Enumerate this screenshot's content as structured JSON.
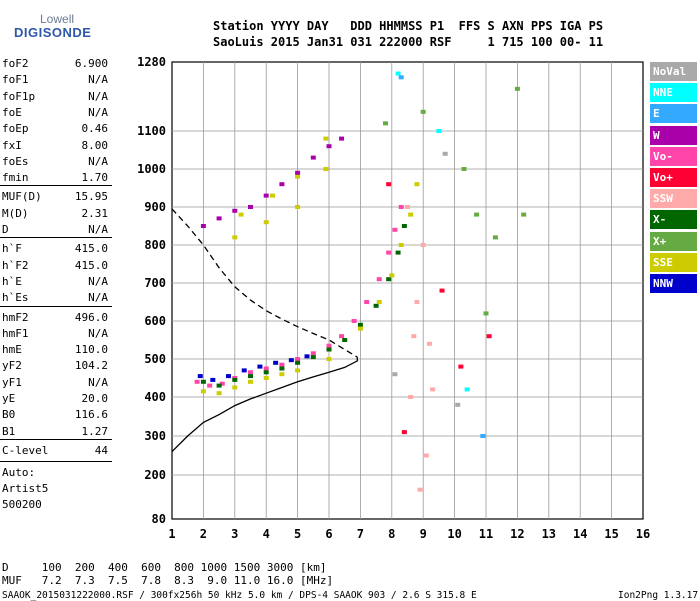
{
  "logo": {
    "line1": "Lowell",
    "line2": "DIGISONDE"
  },
  "header": {
    "row1": "Station YYYY DAY   DDD HHMMSS P1  FFS S AXN PPS IGA PS",
    "row2": "SaoLuis 2015 Jan31 031 222000 RSF     1 715 100 00- 11"
  },
  "params": [
    {
      "name": "foF2",
      "value": "6.900"
    },
    {
      "name": "foF1",
      "value": "N/A"
    },
    {
      "name": "foF1p",
      "value": "N/A"
    },
    {
      "name": "foE",
      "value": "N/A"
    },
    {
      "name": "foEp",
      "value": "0.46"
    },
    {
      "name": "fxI",
      "value": "8.00"
    },
    {
      "name": "foEs",
      "value": "N/A"
    },
    {
      "name": "fmin",
      "value": "1.70"
    },
    {
      "name": "MUF(D)",
      "value": "15.95"
    },
    {
      "name": "M(D)",
      "value": "2.31"
    },
    {
      "name": "D",
      "value": "N/A"
    },
    {
      "name": "h`F",
      "value": "415.0"
    },
    {
      "name": "h`F2",
      "value": "415.0"
    },
    {
      "name": "h`E",
      "value": "N/A"
    },
    {
      "name": "h`Es",
      "value": "N/A"
    },
    {
      "name": "hmF2",
      "value": "496.0"
    },
    {
      "name": "hmF1",
      "value": "N/A"
    },
    {
      "name": "hmE",
      "value": "110.0"
    },
    {
      "name": "yF2",
      "value": "104.2"
    },
    {
      "name": "yF1",
      "value": "N/A"
    },
    {
      "name": "yE",
      "value": "20.0"
    },
    {
      "name": "B0",
      "value": "116.6"
    },
    {
      "name": "B1",
      "value": "1.27"
    },
    {
      "name": "C-level",
      "value": "44"
    }
  ],
  "auto": {
    "line1": "Auto:",
    "line2": "Artist5",
    "line3": "500200"
  },
  "legend": [
    {
      "label": "NoVal",
      "color": "#a9a9a9"
    },
    {
      "label": "NNE",
      "color": "#00ffff"
    },
    {
      "label": "E",
      "color": "#33aaff"
    },
    {
      "label": "W",
      "color": "#aa00aa"
    },
    {
      "label": "Vo-",
      "color": "#ff44aa"
    },
    {
      "label": "Vo+",
      "color": "#ff0033"
    },
    {
      "label": "SSW",
      "color": "#ffaaaa"
    },
    {
      "label": "X-",
      "color": "#006600"
    },
    {
      "label": "X+",
      "color": "#66aa44"
    },
    {
      "label": "SSE",
      "color": "#cccc00"
    },
    {
      "label": "NNW",
      "color": "#0000cc"
    }
  ],
  "footer": {
    "d_row": "D     100  200  400  600  800 1000 1500 3000 [km]",
    "muf_row": "MUF   7.2  7.3  7.5  7.8  8.3  9.0 11.0 16.0 [MHz]",
    "info": "SAAOK_2015031222000.RSF / 300fx256h 50 kHz 5.0 km / DPS-4 SAAOK 903 / 2.6 S 315.8 E",
    "version": "Ion2Png 1.3.17"
  },
  "chart_data": {
    "type": "scatter",
    "title": "",
    "xlabel": "",
    "ylabel": "",
    "xlim": [
      1,
      16
    ],
    "ylim": [
      80,
      1280
    ],
    "x_ticks": [
      1,
      2,
      3,
      4,
      5,
      6,
      7,
      8,
      9,
      10,
      11,
      12,
      13,
      14,
      15,
      16
    ],
    "y_ticks": [
      80,
      200,
      300,
      400,
      500,
      600,
      700,
      800,
      900,
      1000,
      1100,
      1280
    ],
    "series": [
      {
        "name": "Vo-",
        "color": "#ff44aa",
        "points": [
          [
            1.8,
            440
          ],
          [
            2.2,
            430
          ],
          [
            2.6,
            435
          ],
          [
            3.0,
            450
          ],
          [
            3.5,
            465
          ],
          [
            4.0,
            475
          ],
          [
            4.5,
            485
          ],
          [
            5.0,
            500
          ],
          [
            5.5,
            515
          ],
          [
            6.0,
            535
          ],
          [
            6.4,
            560
          ],
          [
            6.8,
            600
          ],
          [
            7.2,
            650
          ],
          [
            7.6,
            710
          ],
          [
            7.9,
            780
          ],
          [
            8.1,
            840
          ],
          [
            8.3,
            900
          ]
        ]
      },
      {
        "name": "X-",
        "color": "#006600",
        "points": [
          [
            2.0,
            440
          ],
          [
            2.5,
            430
          ],
          [
            3.0,
            445
          ],
          [
            3.5,
            455
          ],
          [
            4.0,
            465
          ],
          [
            4.5,
            475
          ],
          [
            5.0,
            490
          ],
          [
            5.5,
            505
          ],
          [
            6.0,
            525
          ],
          [
            6.5,
            550
          ],
          [
            7.0,
            590
          ],
          [
            7.5,
            640
          ],
          [
            7.9,
            710
          ],
          [
            8.2,
            780
          ],
          [
            8.4,
            850
          ]
        ]
      },
      {
        "name": "NNW",
        "color": "#0000cc",
        "points": [
          [
            1.9,
            455
          ],
          [
            2.3,
            445
          ],
          [
            2.8,
            455
          ],
          [
            3.3,
            470
          ],
          [
            3.8,
            480
          ],
          [
            4.3,
            490
          ],
          [
            4.8,
            497
          ],
          [
            5.3,
            507
          ]
        ]
      },
      {
        "name": "SSE",
        "color": "#cccc00",
        "points": [
          [
            2.0,
            415
          ],
          [
            2.5,
            410
          ],
          [
            3.0,
            425
          ],
          [
            3.5,
            440
          ],
          [
            4.0,
            450
          ],
          [
            4.5,
            460
          ],
          [
            5.0,
            470
          ],
          [
            6.0,
            500
          ],
          [
            7.0,
            580
          ],
          [
            7.6,
            650
          ],
          [
            8.0,
            720
          ],
          [
            8.3,
            800
          ],
          [
            8.6,
            880
          ],
          [
            8.8,
            960
          ],
          [
            3.0,
            820
          ],
          [
            4.0,
            860
          ],
          [
            5.0,
            900
          ],
          [
            5.9,
            1000
          ],
          [
            3.2,
            880
          ],
          [
            4.2,
            930
          ],
          [
            5.0,
            980
          ],
          [
            5.9,
            1080
          ]
        ]
      },
      {
        "name": "W",
        "color": "#aa00aa",
        "points": [
          [
            2.0,
            850
          ],
          [
            2.5,
            870
          ],
          [
            3.0,
            890
          ],
          [
            3.5,
            900
          ],
          [
            4.0,
            930
          ],
          [
            4.5,
            960
          ],
          [
            5.0,
            990
          ],
          [
            5.5,
            1030
          ],
          [
            6.0,
            1060
          ],
          [
            6.4,
            1080
          ]
        ]
      },
      {
        "name": "SSW",
        "color": "#ffaaaa",
        "points": [
          [
            8.6,
            400
          ],
          [
            8.7,
            560
          ],
          [
            8.8,
            650
          ],
          [
            9.1,
            250
          ],
          [
            9.2,
            540
          ],
          [
            8.5,
            900
          ],
          [
            9.0,
            800
          ],
          [
            8.9,
            160
          ],
          [
            9.3,
            420
          ]
        ]
      },
      {
        "name": "X+",
        "color": "#66aa44",
        "points": [
          [
            7.8,
            1120
          ],
          [
            9.0,
            1150
          ],
          [
            10.3,
            1000
          ],
          [
            10.7,
            880
          ],
          [
            11.0,
            620
          ],
          [
            11.3,
            820
          ],
          [
            12.0,
            1210
          ],
          [
            12.2,
            880
          ]
        ]
      },
      {
        "name": "Vo+",
        "color": "#ff0033",
        "points": [
          [
            7.9,
            960
          ],
          [
            8.4,
            310
          ],
          [
            9.6,
            680
          ],
          [
            10.2,
            480
          ],
          [
            11.1,
            560
          ]
        ]
      },
      {
        "name": "NNE",
        "color": "#00ffff",
        "points": [
          [
            8.2,
            1250
          ],
          [
            9.5,
            1100
          ],
          [
            10.4,
            420
          ]
        ]
      },
      {
        "name": "E",
        "color": "#33aaff",
        "points": [
          [
            8.3,
            1240
          ],
          [
            10.9,
            300
          ]
        ]
      },
      {
        "name": "NoVal",
        "color": "#a9a9a9",
        "points": [
          [
            8.1,
            460
          ],
          [
            9.7,
            1040
          ],
          [
            10.1,
            380
          ]
        ]
      }
    ],
    "profile_solid": [
      [
        1.0,
        260
      ],
      [
        1.5,
        300
      ],
      [
        2.0,
        335
      ],
      [
        2.5,
        355
      ],
      [
        3.0,
        378
      ],
      [
        3.5,
        395
      ],
      [
        4.0,
        410
      ],
      [
        4.5,
        425
      ],
      [
        5.0,
        440
      ],
      [
        5.5,
        453
      ],
      [
        6.0,
        465
      ],
      [
        6.5,
        478
      ],
      [
        6.9,
        495
      ],
      [
        6.9,
        505
      ]
    ],
    "profile_dashed": [
      [
        1.0,
        895
      ],
      [
        1.5,
        850
      ],
      [
        2.0,
        800
      ],
      [
        2.5,
        740
      ],
      [
        3.0,
        690
      ],
      [
        3.5,
        655
      ],
      [
        4.0,
        627
      ],
      [
        4.5,
        605
      ],
      [
        5.0,
        585
      ],
      [
        5.5,
        567
      ],
      [
        6.0,
        550
      ],
      [
        6.5,
        525
      ],
      [
        6.9,
        505
      ]
    ]
  }
}
